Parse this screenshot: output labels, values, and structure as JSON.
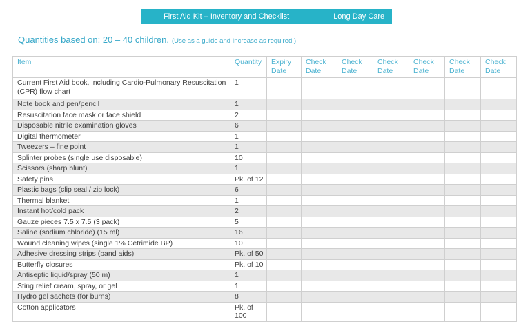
{
  "page": {
    "background": "#ffffff"
  },
  "header_bar": {
    "title": "First Aid Kit – Inventory and Checklist",
    "right_label": "Long Day Care",
    "background_color": "#27b3c8",
    "text_color": "#ffffff"
  },
  "subtitle": {
    "main": "Quantities based on: 20 – 40 children.",
    "note": "(Use as a guide and Increase as required.)",
    "color": "#35a7c8"
  },
  "table": {
    "columns": [
      "Item",
      "Quantity",
      "Expiry Date",
      "Check Date",
      "Check Date",
      "Check Date",
      "Check Date",
      "Check Date",
      "Check Date"
    ],
    "header_text_color": "#4db3d1",
    "body_text_color": "#3f3f3f",
    "alt_row_background": "#e8e8e8",
    "border_color": "#cfcfcf",
    "rows": [
      {
        "item": "Current First Aid book, including Cardio-Pulmonary Resuscitation (CPR) flow chart",
        "quantity": "1"
      },
      {
        "item": "Note book and pen/pencil",
        "quantity": "1"
      },
      {
        "item": "Resuscitation face mask or face shield",
        "quantity": "2"
      },
      {
        "item": "Disposable nitrile examination gloves",
        "quantity": "6"
      },
      {
        "item": "Digital thermometer",
        "quantity": "1"
      },
      {
        "item": "Tweezers – fine point",
        "quantity": "1"
      },
      {
        "item": "Splinter probes (single use disposable)",
        "quantity": "10"
      },
      {
        "item": "Scissors (sharp blunt)",
        "quantity": "1"
      },
      {
        "item": "Safety pins",
        "quantity": "Pk. of 12"
      },
      {
        "item": "Plastic bags (clip seal / zip lock)",
        "quantity": "6"
      },
      {
        "item": "Thermal blanket",
        "quantity": "1"
      },
      {
        "item": "Instant hot/cold pack",
        "quantity": "2"
      },
      {
        "item": "Gauze pieces 7.5 x 7.5 (3 pack)",
        "quantity": "5"
      },
      {
        "item": "Saline (sodium chloride) (15 ml)",
        "quantity": "16"
      },
      {
        "item": "Wound cleaning wipes (single 1% Cetrimide BP)",
        "quantity": "10"
      },
      {
        "item": "Adhesive dressing strips (band aids)",
        "quantity": "Pk. of 50"
      },
      {
        "item": "Butterfly closures",
        "quantity": "Pk. of 10"
      },
      {
        "item": "Antiseptic liquid/spray (50 m)",
        "quantity": "1"
      },
      {
        "item": "Sting relief cream, spray, or gel",
        "quantity": "1"
      },
      {
        "item": "Hydro gel sachets (for burns)",
        "quantity": "8"
      },
      {
        "item": "Cotton applicators",
        "quantity": "Pk. of 100"
      }
    ]
  }
}
